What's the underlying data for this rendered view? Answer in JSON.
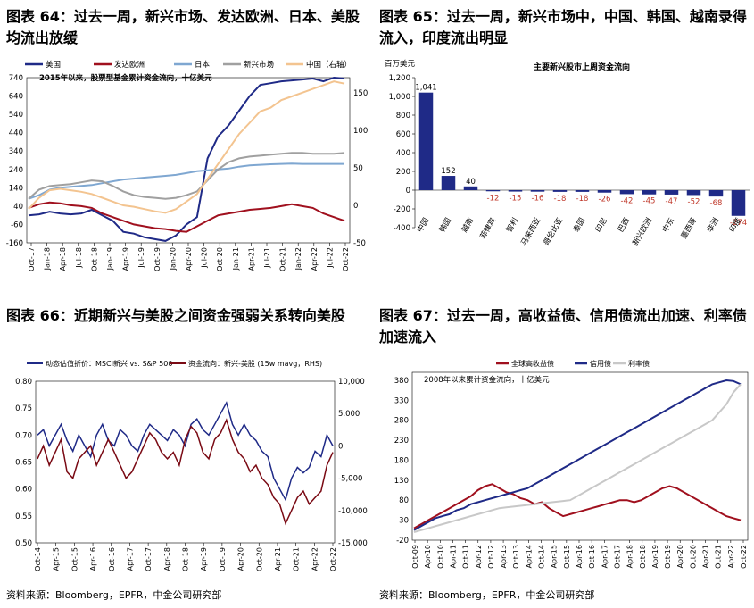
{
  "titles": {
    "t64": "图表 64：过去一周，新兴市场、发达欧洲、日本、美股均流出放缓",
    "t65": "图表 65：过去一周，新兴市场中，中国、韩国、越南录得流入，印度流出明显",
    "t66": "图表 66：近期新兴与美股之间资金强弱关系转向美股",
    "t67": "图表 67：过去一周，高收益债、信用债流出加速、利率债加速流入"
  },
  "sources": {
    "left": "资料来源：Bloomberg，EPFR，中金公司研究部",
    "right": "资料来源：Bloomberg，EPFR，中金公司研究部"
  },
  "chart_data": [
    {
      "type": "line",
      "id": "c64",
      "note": "2015年以来，股票型基金累计资金流向，十亿美元",
      "x_ticks": [
        "Oct-17",
        "Jan-18",
        "Apr-18",
        "Jul-18",
        "Oct-18",
        "Jan-19",
        "Apr-19",
        "Jul-19",
        "Oct-19",
        "Jan-20",
        "Apr-20",
        "Jul-20",
        "Oct-20",
        "Jan-21",
        "Apr-21",
        "Jul-21",
        "Oct-21",
        "Jan-22",
        "Apr-22",
        "Jul-22",
        "Oct-22"
      ],
      "ylim_left": [
        -160,
        740
      ],
      "yticks_left": [
        740,
        640,
        540,
        440,
        340,
        240,
        140,
        40,
        -60,
        -160
      ],
      "ylim_right": [
        -50,
        170
      ],
      "yticks_right": [
        150,
        100,
        50,
        0,
        -50
      ],
      "series": [
        {
          "name": "美国",
          "color": "#1f2a87",
          "axis": "left",
          "values": [
            -10,
            -5,
            10,
            0,
            -5,
            0,
            20,
            -10,
            -40,
            -100,
            -110,
            -130,
            -140,
            -150,
            -120,
            -60,
            -20,
            300,
            420,
            480,
            560,
            640,
            700,
            710,
            720,
            725,
            730,
            735,
            720,
            740,
            735
          ]
        },
        {
          "name": "发达欧洲",
          "color": "#a0101e",
          "axis": "left",
          "values": [
            30,
            50,
            60,
            55,
            45,
            40,
            30,
            0,
            -20,
            -40,
            -60,
            -70,
            -80,
            -85,
            -95,
            -100,
            -70,
            -40,
            -10,
            0,
            10,
            20,
            25,
            30,
            40,
            50,
            40,
            30,
            0,
            -20,
            -40
          ]
        },
        {
          "name": "日本",
          "color": "#7fa7d1",
          "axis": "left",
          "values": [
            80,
            100,
            130,
            140,
            145,
            150,
            155,
            165,
            175,
            185,
            190,
            195,
            200,
            205,
            210,
            220,
            230,
            235,
            240,
            245,
            255,
            262,
            265,
            268,
            270,
            272,
            270,
            270,
            270,
            270,
            270
          ]
        },
        {
          "name": "新兴市场",
          "color": "#a0a0a0",
          "axis": "left",
          "values": [
            80,
            130,
            150,
            155,
            160,
            170,
            180,
            175,
            150,
            120,
            100,
            90,
            85,
            80,
            85,
            100,
            120,
            180,
            240,
            280,
            300,
            310,
            315,
            320,
            325,
            330,
            330,
            325,
            325,
            325,
            330
          ]
        },
        {
          "name": "中国（右轴）",
          "color": "#f3c490",
          "axis": "right",
          "values": [
            -5,
            10,
            20,
            22,
            20,
            18,
            15,
            10,
            5,
            0,
            -2,
            -5,
            -8,
            -10,
            -5,
            5,
            15,
            35,
            55,
            75,
            95,
            110,
            125,
            130,
            140,
            145,
            150,
            155,
            160,
            165,
            162
          ]
        }
      ]
    },
    {
      "type": "bar",
      "id": "c65",
      "title": "主要新兴股市上周资金流向",
      "ylabel": "百万美元",
      "ylim": [
        -400,
        1200
      ],
      "yticks": [
        1200,
        1000,
        800,
        600,
        400,
        200,
        0,
        -200,
        -400
      ],
      "categories": [
        "中国",
        "韩国",
        "越南",
        "菲律宾",
        "智利",
        "马来西亚",
        "哥伦比亚",
        "泰国",
        "印尼",
        "巴西",
        "新兴欧洲",
        "中东",
        "墨西哥",
        "非洲",
        "印度"
      ],
      "values": [
        1041,
        152,
        40,
        -12,
        -15,
        -16,
        -18,
        -18,
        -26,
        -42,
        -45,
        -47,
        -52,
        -68,
        -274
      ],
      "labels": [
        "1,041",
        "152",
        "40",
        "-12",
        "-15",
        "-16",
        "-18",
        "-18",
        "-26",
        "-42",
        "-45",
        "-47",
        "-52",
        "-68",
        "-274"
      ],
      "color": "#1f2a87"
    },
    {
      "type": "line",
      "id": "c66",
      "x_ticks": [
        "Oct-14",
        "Apr-15",
        "Oct-15",
        "Apr-16",
        "Oct-16",
        "Apr-17",
        "Oct-17",
        "Apr-18",
        "Oct-18",
        "Apr-19",
        "Oct-19",
        "Apr-20",
        "Oct-20",
        "Apr-21",
        "Oct-21",
        "Apr-22",
        "Oct-22"
      ],
      "ylim_left": [
        0.5,
        0.8
      ],
      "yticks_left": [
        "0.80",
        "0.75",
        "0.70",
        "0.65",
        "0.60",
        "0.55",
        "0.50"
      ],
      "ylim_right": [
        -15000,
        10000
      ],
      "yticks_right": [
        "10,000",
        "5,000",
        "0",
        "-5,000",
        "-10,000",
        "-15,000"
      ],
      "series": [
        {
          "name": "动态估值折价：MSCI新兴 vs. S&P 500",
          "color": "#1f2a87",
          "axis": "left",
          "values": [
            0.7,
            0.71,
            0.68,
            0.7,
            0.72,
            0.69,
            0.67,
            0.7,
            0.68,
            0.66,
            0.7,
            0.72,
            0.69,
            0.68,
            0.71,
            0.7,
            0.68,
            0.67,
            0.7,
            0.72,
            0.71,
            0.7,
            0.69,
            0.71,
            0.7,
            0.68,
            0.72,
            0.73,
            0.71,
            0.7,
            0.72,
            0.74,
            0.76,
            0.72,
            0.7,
            0.72,
            0.7,
            0.69,
            0.67,
            0.66,
            0.62,
            0.6,
            0.58,
            0.62,
            0.64,
            0.63,
            0.64,
            0.67,
            0.66,
            0.7,
            0.68
          ]
        },
        {
          "name": "资金流向：新兴-美股 (15w mavg，RHS)",
          "color": "#7a0a14",
          "axis": "right",
          "values": [
            -2000,
            0,
            -3000,
            -1000,
            1000,
            -4000,
            -5000,
            -2000,
            -1000,
            0,
            -3000,
            -1000,
            1000,
            -1000,
            -3000,
            -5000,
            -4000,
            -2000,
            0,
            2000,
            1000,
            -1000,
            -2000,
            -1000,
            -3000,
            1000,
            3000,
            2000,
            -1000,
            -2000,
            1000,
            2000,
            4000,
            1000,
            -1000,
            -2000,
            -4000,
            -3000,
            -5000,
            -6000,
            -8000,
            -9000,
            -12000,
            -10000,
            -8000,
            -7000,
            -9000,
            -8000,
            -7000,
            -3000,
            -1000
          ]
        }
      ]
    },
    {
      "type": "line",
      "id": "c67",
      "note": "2008年以来累计资金流向，十亿美元",
      "x_ticks": [
        "Oct-09",
        "Apr-10",
        "Oct-10",
        "Apr-11",
        "Oct-11",
        "Apr-12",
        "Oct-12",
        "Apr-13",
        "Oct-13",
        "Apr-14",
        "Oct-14",
        "Apr-15",
        "Oct-15",
        "Apr-16",
        "Oct-16",
        "Apr-17",
        "Oct-17",
        "Apr-18",
        "Oct-18",
        "Apr-19",
        "Oct-19",
        "Apr-20",
        "Oct-20",
        "Apr-21",
        "Oct-21",
        "Apr-22",
        "Oct-22"
      ],
      "ylim": [
        -20,
        400
      ],
      "yticks": [
        380,
        330,
        280,
        230,
        180,
        130,
        80,
        30,
        -20
      ],
      "series": [
        {
          "name": "全球高收益债",
          "color": "#a0101e",
          "values": [
            10,
            20,
            30,
            40,
            50,
            60,
            70,
            80,
            90,
            105,
            115,
            120,
            110,
            100,
            95,
            85,
            80,
            70,
            75,
            60,
            50,
            40,
            45,
            50,
            55,
            60,
            65,
            70,
            75,
            80,
            80,
            75,
            80,
            90,
            100,
            110,
            115,
            110,
            100,
            90,
            80,
            70,
            60,
            50,
            40,
            35,
            30
          ]
        },
        {
          "name": "信用债",
          "color": "#1f2a87",
          "values": [
            5,
            15,
            25,
            35,
            40,
            45,
            55,
            60,
            70,
            75,
            80,
            85,
            90,
            95,
            100,
            105,
            110,
            120,
            130,
            140,
            150,
            160,
            170,
            180,
            190,
            200,
            210,
            220,
            230,
            240,
            250,
            260,
            270,
            280,
            290,
            300,
            310,
            320,
            330,
            340,
            350,
            360,
            370,
            375,
            380,
            378,
            370
          ]
        },
        {
          "name": "利率债",
          "color": "#c8c8c8",
          "values": [
            0,
            5,
            10,
            15,
            20,
            25,
            30,
            35,
            40,
            45,
            50,
            55,
            60,
            62,
            64,
            66,
            68,
            70,
            72,
            74,
            76,
            78,
            80,
            90,
            100,
            110,
            120,
            130,
            140,
            150,
            160,
            170,
            180,
            190,
            200,
            210,
            220,
            230,
            240,
            250,
            260,
            270,
            280,
            300,
            320,
            350,
            370
          ]
        }
      ]
    }
  ]
}
